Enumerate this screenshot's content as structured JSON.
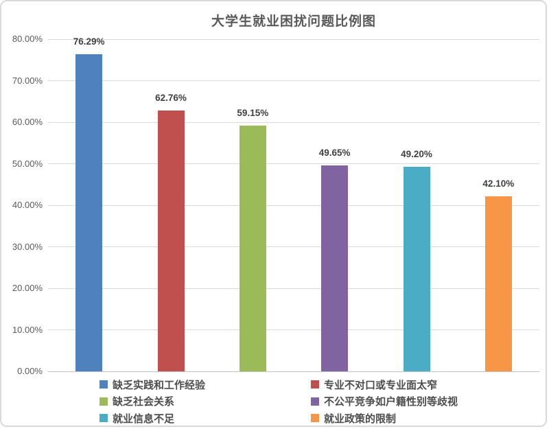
{
  "chart_data": {
    "type": "bar",
    "title": "大学生就业困扰问题比例图",
    "categories": [
      "缺乏实践和工作经验",
      "专业不对口或专业面太窄",
      "缺乏社会关系",
      "不公平竞争如户籍性别等歧视",
      "就业信息不足",
      "就业政策的限制"
    ],
    "values": [
      76.29,
      62.76,
      59.15,
      49.65,
      49.2,
      42.1
    ],
    "value_labels": [
      "76.29%",
      "62.76%",
      "59.15%",
      "49.65%",
      "49.20%",
      "42.10%"
    ],
    "bar_colors": [
      "#4E81BD",
      "#C0504D",
      "#9BBB59",
      "#8064A2",
      "#4BACC6",
      "#F79646"
    ],
    "xlabel": "",
    "ylabel": "",
    "ylim": [
      0,
      80
    ],
    "y_ticks": [
      0,
      10,
      20,
      30,
      40,
      50,
      60,
      70,
      80
    ],
    "y_tick_labels": [
      "0.00%",
      "10.00%",
      "20.00%",
      "30.00%",
      "40.00%",
      "50.00%",
      "60.00%",
      "70.00%",
      "80.00%"
    ],
    "grid": true,
    "legend_position": "bottom",
    "legend": [
      {
        "label": "缺乏实践和工作经验",
        "color": "#4E81BD"
      },
      {
        "label": "专业不对口或专业面太窄",
        "color": "#C0504D"
      },
      {
        "label": "缺乏社会关系",
        "color": "#9BBB59"
      },
      {
        "label": "不公平竞争如户籍性别等歧视",
        "color": "#8064A2"
      },
      {
        "label": "就业信息不足",
        "color": "#4BACC6"
      },
      {
        "label": "就业政策的限制",
        "color": "#F79646"
      }
    ]
  }
}
